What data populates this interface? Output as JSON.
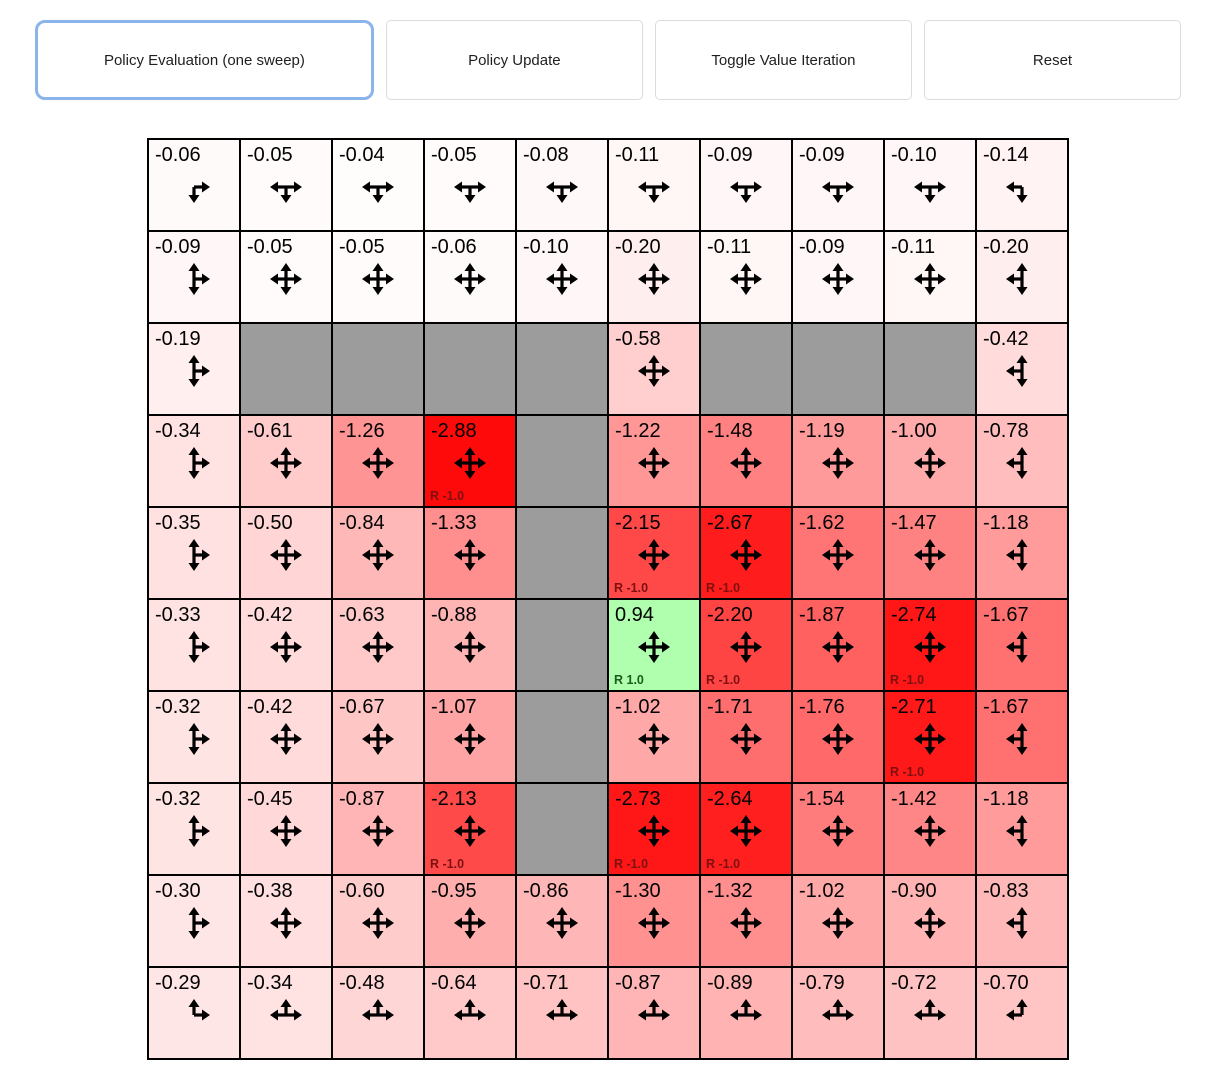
{
  "toolbar": {
    "buttons": [
      {
        "label": "Policy Evaluation (one sweep)",
        "active": true
      },
      {
        "label": "Policy Update",
        "active": false
      },
      {
        "label": "Toggle Value Iteration",
        "active": false
      },
      {
        "label": "Reset",
        "active": false
      }
    ]
  },
  "colors": {
    "wall": "#9c9c9c",
    "negative_full": "#ff0000",
    "positive_full": "#00ff00",
    "neutral": "#ffffff",
    "reward_negative_text": "#7f1010",
    "reward_positive_text": "#1a5c1a",
    "cell_border": "#000000",
    "active_button_border": "#8ab4ea",
    "max_abs_value": 3
  },
  "grid": {
    "rows": 10,
    "cols": 10,
    "cells": [
      [
        {
          "value": "-0.06",
          "arrows": "dr"
        },
        {
          "value": "-0.05",
          "arrows": "ldr"
        },
        {
          "value": "-0.04",
          "arrows": "ldr"
        },
        {
          "value": "-0.05",
          "arrows": "ldr"
        },
        {
          "value": "-0.08",
          "arrows": "ldr"
        },
        {
          "value": "-0.11",
          "arrows": "ldr"
        },
        {
          "value": "-0.09",
          "arrows": "ldr"
        },
        {
          "value": "-0.09",
          "arrows": "ldr"
        },
        {
          "value": "-0.10",
          "arrows": "ldr"
        },
        {
          "value": "-0.14",
          "arrows": "dl"
        }
      ],
      [
        {
          "value": "-0.09",
          "arrows": "udr"
        },
        {
          "value": "-0.05",
          "arrows": "udlr"
        },
        {
          "value": "-0.05",
          "arrows": "udlr"
        },
        {
          "value": "-0.06",
          "arrows": "udlr"
        },
        {
          "value": "-0.10",
          "arrows": "udlr"
        },
        {
          "value": "-0.20",
          "arrows": "udlr"
        },
        {
          "value": "-0.11",
          "arrows": "udlr"
        },
        {
          "value": "-0.09",
          "arrows": "udlr"
        },
        {
          "value": "-0.11",
          "arrows": "udlr"
        },
        {
          "value": "-0.20",
          "arrows": "udl"
        }
      ],
      [
        {
          "value": "-0.19",
          "arrows": "udr"
        },
        {
          "wall": true
        },
        {
          "wall": true
        },
        {
          "wall": true
        },
        {
          "wall": true
        },
        {
          "value": "-0.58",
          "arrows": "udlr"
        },
        {
          "wall": true
        },
        {
          "wall": true
        },
        {
          "wall": true
        },
        {
          "value": "-0.42",
          "arrows": "udl"
        }
      ],
      [
        {
          "value": "-0.34",
          "arrows": "udr"
        },
        {
          "value": "-0.61",
          "arrows": "udlr"
        },
        {
          "value": "-1.26",
          "arrows": "udlr"
        },
        {
          "value": "-2.88",
          "arrows": "udlr",
          "reward": "R -1.0"
        },
        {
          "wall": true
        },
        {
          "value": "-1.22",
          "arrows": "udlr"
        },
        {
          "value": "-1.48",
          "arrows": "udlr"
        },
        {
          "value": "-1.19",
          "arrows": "udlr"
        },
        {
          "value": "-1.00",
          "arrows": "udlr"
        },
        {
          "value": "-0.78",
          "arrows": "udl"
        }
      ],
      [
        {
          "value": "-0.35",
          "arrows": "udr"
        },
        {
          "value": "-0.50",
          "arrows": "udlr"
        },
        {
          "value": "-0.84",
          "arrows": "udlr"
        },
        {
          "value": "-1.33",
          "arrows": "udlr"
        },
        {
          "wall": true
        },
        {
          "value": "-2.15",
          "arrows": "udlr",
          "reward": "R -1.0"
        },
        {
          "value": "-2.67",
          "arrows": "udlr",
          "reward": "R -1.0"
        },
        {
          "value": "-1.62",
          "arrows": "udlr"
        },
        {
          "value": "-1.47",
          "arrows": "udlr"
        },
        {
          "value": "-1.18",
          "arrows": "udl"
        }
      ],
      [
        {
          "value": "-0.33",
          "arrows": "udr"
        },
        {
          "value": "-0.42",
          "arrows": "udlr"
        },
        {
          "value": "-0.63",
          "arrows": "udlr"
        },
        {
          "value": "-0.88",
          "arrows": "udlr"
        },
        {
          "wall": true
        },
        {
          "value": "0.94",
          "arrows": "udlr",
          "reward": "R 1.0"
        },
        {
          "value": "-2.20",
          "arrows": "udlr",
          "reward": "R -1.0"
        },
        {
          "value": "-1.87",
          "arrows": "udlr"
        },
        {
          "value": "-2.74",
          "arrows": "udlr",
          "reward": "R -1.0"
        },
        {
          "value": "-1.67",
          "arrows": "udl"
        }
      ],
      [
        {
          "value": "-0.32",
          "arrows": "udr"
        },
        {
          "value": "-0.42",
          "arrows": "udlr"
        },
        {
          "value": "-0.67",
          "arrows": "udlr"
        },
        {
          "value": "-1.07",
          "arrows": "udlr"
        },
        {
          "wall": true
        },
        {
          "value": "-1.02",
          "arrows": "udlr"
        },
        {
          "value": "-1.71",
          "arrows": "udlr"
        },
        {
          "value": "-1.76",
          "arrows": "udlr"
        },
        {
          "value": "-2.71",
          "arrows": "udlr",
          "reward": "R -1.0"
        },
        {
          "value": "-1.67",
          "arrows": "udl"
        }
      ],
      [
        {
          "value": "-0.32",
          "arrows": "udr"
        },
        {
          "value": "-0.45",
          "arrows": "udlr"
        },
        {
          "value": "-0.87",
          "arrows": "udlr"
        },
        {
          "value": "-2.13",
          "arrows": "udlr",
          "reward": "R -1.0"
        },
        {
          "wall": true
        },
        {
          "value": "-2.73",
          "arrows": "udlr",
          "reward": "R -1.0"
        },
        {
          "value": "-2.64",
          "arrows": "udlr",
          "reward": "R -1.0"
        },
        {
          "value": "-1.54",
          "arrows": "udlr"
        },
        {
          "value": "-1.42",
          "arrows": "udlr"
        },
        {
          "value": "-1.18",
          "arrows": "udl"
        }
      ],
      [
        {
          "value": "-0.30",
          "arrows": "udr"
        },
        {
          "value": "-0.38",
          "arrows": "udlr"
        },
        {
          "value": "-0.60",
          "arrows": "udlr"
        },
        {
          "value": "-0.95",
          "arrows": "udlr"
        },
        {
          "value": "-0.86",
          "arrows": "udlr"
        },
        {
          "value": "-1.30",
          "arrows": "udlr"
        },
        {
          "value": "-1.32",
          "arrows": "udlr"
        },
        {
          "value": "-1.02",
          "arrows": "udlr"
        },
        {
          "value": "-0.90",
          "arrows": "udlr"
        },
        {
          "value": "-0.83",
          "arrows": "udl"
        }
      ],
      [
        {
          "value": "-0.29",
          "arrows": "ur"
        },
        {
          "value": "-0.34",
          "arrows": "ulr"
        },
        {
          "value": "-0.48",
          "arrows": "ulr"
        },
        {
          "value": "-0.64",
          "arrows": "ulr"
        },
        {
          "value": "-0.71",
          "arrows": "ulr"
        },
        {
          "value": "-0.87",
          "arrows": "ulr"
        },
        {
          "value": "-0.89",
          "arrows": "ulr"
        },
        {
          "value": "-0.79",
          "arrows": "ulr"
        },
        {
          "value": "-0.72",
          "arrows": "ulr"
        },
        {
          "value": "-0.70",
          "arrows": "ul"
        }
      ]
    ]
  }
}
